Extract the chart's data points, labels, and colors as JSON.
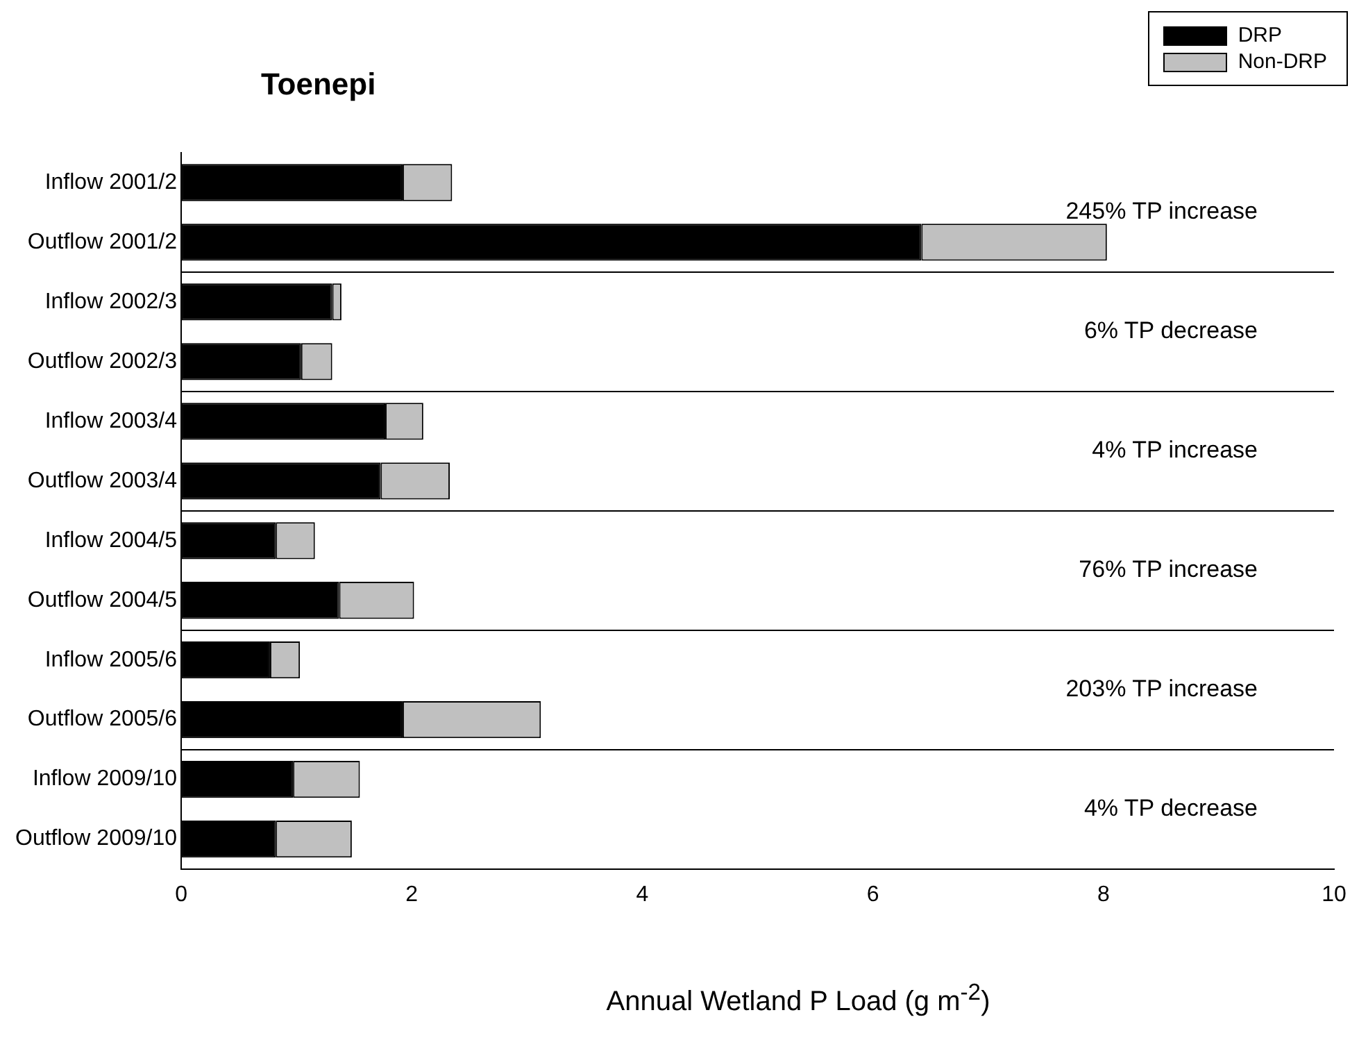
{
  "chart_data": {
    "type": "bar",
    "orientation": "horizontal",
    "stacked": true,
    "title": "Toenepi",
    "xlabel": "Annual Wetland P Load (g m$^{-2}$)",
    "categories": [
      "Inflow 2001/2",
      "Outflow 2001/2",
      "Inflow 2002/3",
      "Outflow 2002/3",
      "Inflow 2003/4",
      "Outflow 2003/4",
      "Inflow 2004/5",
      "Outflow 2004/5",
      "Inflow 2005/6",
      "Outflow 2005/6",
      "Inflow 2009/10",
      "Outflow 2009/10"
    ],
    "series": [
      {
        "name": "DRP",
        "color": "#000000",
        "values": [
          1.92,
          6.42,
          1.31,
          1.04,
          1.77,
          1.73,
          0.82,
          1.37,
          0.77,
          1.92,
          0.97,
          0.82
        ]
      },
      {
        "name": "Non-DRP",
        "color": "#c0c0c0",
        "values": [
          0.43,
          1.61,
          0.08,
          0.27,
          0.33,
          0.6,
          0.34,
          0.65,
          0.26,
          1.2,
          0.58,
          0.66
        ]
      }
    ],
    "xlim": [
      0,
      10
    ],
    "xticks": [
      0,
      2,
      4,
      6,
      8,
      10
    ],
    "legend": "top right",
    "grid": false,
    "annotations": [
      "245% TP increase",
      "6% TP decrease",
      "4% TP increase",
      "76% TP increase",
      "203% TP increase",
      "4% TP decrease"
    ]
  }
}
